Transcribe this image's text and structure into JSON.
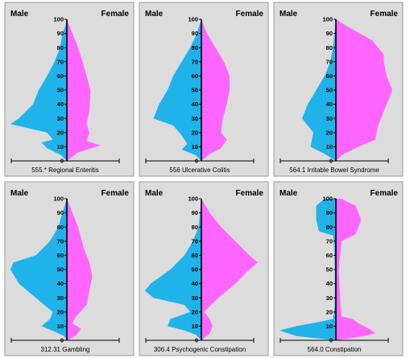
{
  "chart_data": [
    {
      "type": "area",
      "title": "555.* Regional Enteritis",
      "left_label": "Male",
      "right_label": "Female",
      "y_ticks": [
        0,
        10,
        20,
        30,
        40,
        50,
        60,
        70,
        80,
        90,
        100
      ],
      "ylim": [
        0,
        100
      ],
      "colors": {
        "male": "#1fb3ea",
        "female": "#ff66ff"
      },
      "series": [
        {
          "name": "Male",
          "points": [
            [
              0,
              0
            ],
            [
              4,
              0.1
            ],
            [
              7,
              0.25
            ],
            [
              9,
              0.35
            ],
            [
              13,
              0.45
            ],
            [
              15,
              0.25
            ],
            [
              20,
              0.35
            ],
            [
              26,
              1.0
            ],
            [
              30,
              0.85
            ],
            [
              40,
              0.6
            ],
            [
              50,
              0.5
            ],
            [
              60,
              0.35
            ],
            [
              70,
              0.22
            ],
            [
              80,
              0.12
            ],
            [
              90,
              0.08
            ],
            [
              95,
              0.03
            ],
            [
              100,
              0
            ]
          ]
        },
        {
          "name": "Female",
          "points": [
            [
              0,
              0
            ],
            [
              6,
              0.2
            ],
            [
              11,
              0.6
            ],
            [
              14,
              0.35
            ],
            [
              20,
              0.4
            ],
            [
              26,
              0.35
            ],
            [
              35,
              0.4
            ],
            [
              50,
              0.42
            ],
            [
              60,
              0.35
            ],
            [
              70,
              0.28
            ],
            [
              80,
              0.2
            ],
            [
              90,
              0.1
            ],
            [
              100,
              0
            ]
          ]
        }
      ]
    },
    {
      "type": "area",
      "title": "556 Ulcerative Colitis",
      "left_label": "Male",
      "right_label": "Female",
      "y_ticks": [
        0,
        10,
        20,
        30,
        40,
        50,
        60,
        70,
        80,
        90,
        100
      ],
      "ylim": [
        0,
        100
      ],
      "colors": {
        "male": "#1fb3ea",
        "female": "#ff66ff"
      },
      "series": [
        {
          "name": "Male",
          "points": [
            [
              0,
              0
            ],
            [
              4,
              0.1
            ],
            [
              8,
              0.35
            ],
            [
              12,
              0.25
            ],
            [
              18,
              0.35
            ],
            [
              25,
              0.5
            ],
            [
              30,
              0.85
            ],
            [
              40,
              0.75
            ],
            [
              50,
              0.6
            ],
            [
              60,
              0.5
            ],
            [
              70,
              0.35
            ],
            [
              80,
              0.2
            ],
            [
              90,
              0.08
            ],
            [
              100,
              0
            ]
          ]
        },
        {
          "name": "Female",
          "points": [
            [
              0,
              0
            ],
            [
              5,
              0.15
            ],
            [
              9,
              0.35
            ],
            [
              15,
              0.45
            ],
            [
              20,
              0.35
            ],
            [
              30,
              0.38
            ],
            [
              40,
              0.45
            ],
            [
              50,
              0.5
            ],
            [
              60,
              0.5
            ],
            [
              70,
              0.4
            ],
            [
              80,
              0.25
            ],
            [
              90,
              0.1
            ],
            [
              100,
              0
            ]
          ]
        }
      ]
    },
    {
      "type": "area",
      "title": "564.1 Irritable Bowel Syndrome",
      "left_label": "Male",
      "right_label": "Female",
      "y_ticks": [
        0,
        10,
        20,
        30,
        40,
        50,
        60,
        70,
        80,
        90,
        100
      ],
      "ylim": [
        0,
        100
      ],
      "colors": {
        "male": "#1fb3ea",
        "female": "#ff66ff"
      },
      "series": [
        {
          "name": "Male",
          "points": [
            [
              0,
              0
            ],
            [
              5,
              0.2
            ],
            [
              10,
              0.45
            ],
            [
              20,
              0.4
            ],
            [
              30,
              0.6
            ],
            [
              40,
              0.5
            ],
            [
              50,
              0.35
            ],
            [
              60,
              0.2
            ],
            [
              70,
              0.1
            ],
            [
              80,
              0.05
            ],
            [
              100,
              0
            ]
          ]
        },
        {
          "name": "Female",
          "points": [
            [
              0,
              0
            ],
            [
              4,
              0.1
            ],
            [
              10,
              0.4
            ],
            [
              15,
              0.7
            ],
            [
              25,
              0.75
            ],
            [
              35,
              0.85
            ],
            [
              50,
              1.0
            ],
            [
              60,
              0.9
            ],
            [
              70,
              0.85
            ],
            [
              75,
              0.85
            ],
            [
              85,
              0.65
            ],
            [
              95,
              0.2
            ],
            [
              100,
              0
            ]
          ]
        }
      ]
    },
    {
      "type": "area",
      "title": "312.31 Gambling",
      "left_label": "Male",
      "right_label": "Female",
      "y_ticks": [
        0,
        10,
        20,
        30,
        40,
        50,
        60,
        70,
        80,
        90,
        100
      ],
      "ylim": [
        0,
        100
      ],
      "colors": {
        "male": "#1fb3ea",
        "female": "#ff66ff"
      },
      "series": [
        {
          "name": "Male",
          "points": [
            [
              0,
              0
            ],
            [
              3,
              0.05
            ],
            [
              5,
              0.15
            ],
            [
              10,
              0.45
            ],
            [
              15,
              0.3
            ],
            [
              20,
              0.25
            ],
            [
              30,
              0.55
            ],
            [
              40,
              0.85
            ],
            [
              50,
              1.0
            ],
            [
              55,
              0.95
            ],
            [
              60,
              0.55
            ],
            [
              70,
              0.3
            ],
            [
              80,
              0.15
            ],
            [
              90,
              0.08
            ],
            [
              100,
              0
            ]
          ]
        },
        {
          "name": "Female",
          "points": [
            [
              0,
              0
            ],
            [
              3,
              0.15
            ],
            [
              8,
              0.25
            ],
            [
              12,
              0.1
            ],
            [
              16,
              0.15
            ],
            [
              25,
              0.35
            ],
            [
              35,
              0.4
            ],
            [
              45,
              0.45
            ],
            [
              55,
              0.4
            ],
            [
              65,
              0.3
            ],
            [
              80,
              0.2
            ],
            [
              90,
              0.1
            ],
            [
              100,
              0
            ]
          ]
        }
      ]
    },
    {
      "type": "area",
      "title": "306.4 Psychogenic Constipation",
      "left_label": "Male",
      "right_label": "Female",
      "y_ticks": [
        0,
        10,
        20,
        30,
        40,
        50,
        60,
        70,
        80,
        90,
        100
      ],
      "ylim": [
        0,
        100
      ],
      "colors": {
        "male": "#1fb3ea",
        "female": "#ff66ff"
      },
      "series": [
        {
          "name": "Male",
          "points": [
            [
              0,
              0
            ],
            [
              4,
              0.1
            ],
            [
              7,
              0.3
            ],
            [
              10,
              0.6
            ],
            [
              15,
              0.55
            ],
            [
              20,
              0.2
            ],
            [
              25,
              0.3
            ],
            [
              30,
              0.85
            ],
            [
              35,
              1.0
            ],
            [
              40,
              0.9
            ],
            [
              50,
              0.55
            ],
            [
              60,
              0.3
            ],
            [
              70,
              0.15
            ],
            [
              80,
              0.05
            ],
            [
              100,
              0
            ]
          ]
        },
        {
          "name": "Female",
          "points": [
            [
              0,
              0
            ],
            [
              5,
              0.15
            ],
            [
              10,
              0.2
            ],
            [
              15,
              0.15
            ],
            [
              20,
              0.05
            ],
            [
              30,
              0.3
            ],
            [
              40,
              0.6
            ],
            [
              50,
              0.85
            ],
            [
              55,
              1.0
            ],
            [
              60,
              0.85
            ],
            [
              70,
              0.6
            ],
            [
              80,
              0.35
            ],
            [
              90,
              0.15
            ],
            [
              100,
              0
            ]
          ]
        }
      ]
    },
    {
      "type": "area",
      "title": "564.0 Constipation",
      "left_label": "Male",
      "right_label": "Female",
      "y_ticks": [
        0,
        10,
        20,
        30,
        40,
        50,
        60,
        70,
        80,
        90,
        100
      ],
      "ylim": [
        0,
        100
      ],
      "colors": {
        "male": "#1fb3ea",
        "female": "#ff66ff"
      },
      "series": [
        {
          "name": "Male",
          "points": [
            [
              0,
              0
            ],
            [
              3,
              0.7
            ],
            [
              7,
              1.0
            ],
            [
              10,
              0.7
            ],
            [
              13,
              0.3
            ],
            [
              15,
              0.05
            ],
            [
              25,
              0.02
            ],
            [
              50,
              0.02
            ],
            [
              65,
              0.03
            ],
            [
              74,
              0.05
            ],
            [
              77,
              0.3
            ],
            [
              85,
              0.35
            ],
            [
              95,
              0.35
            ],
            [
              100,
              0.2
            ]
          ]
        },
        {
          "name": "Female",
          "points": [
            [
              0,
              0
            ],
            [
              3,
              0.5
            ],
            [
              5,
              0.7
            ],
            [
              8,
              0.6
            ],
            [
              12,
              0.4
            ],
            [
              15,
              0.3
            ],
            [
              17,
              0.1
            ],
            [
              25,
              0.08
            ],
            [
              50,
              0.05
            ],
            [
              70,
              0.1
            ],
            [
              75,
              0.35
            ],
            [
              85,
              0.45
            ],
            [
              95,
              0.35
            ],
            [
              100,
              0.1
            ]
          ]
        }
      ]
    }
  ]
}
